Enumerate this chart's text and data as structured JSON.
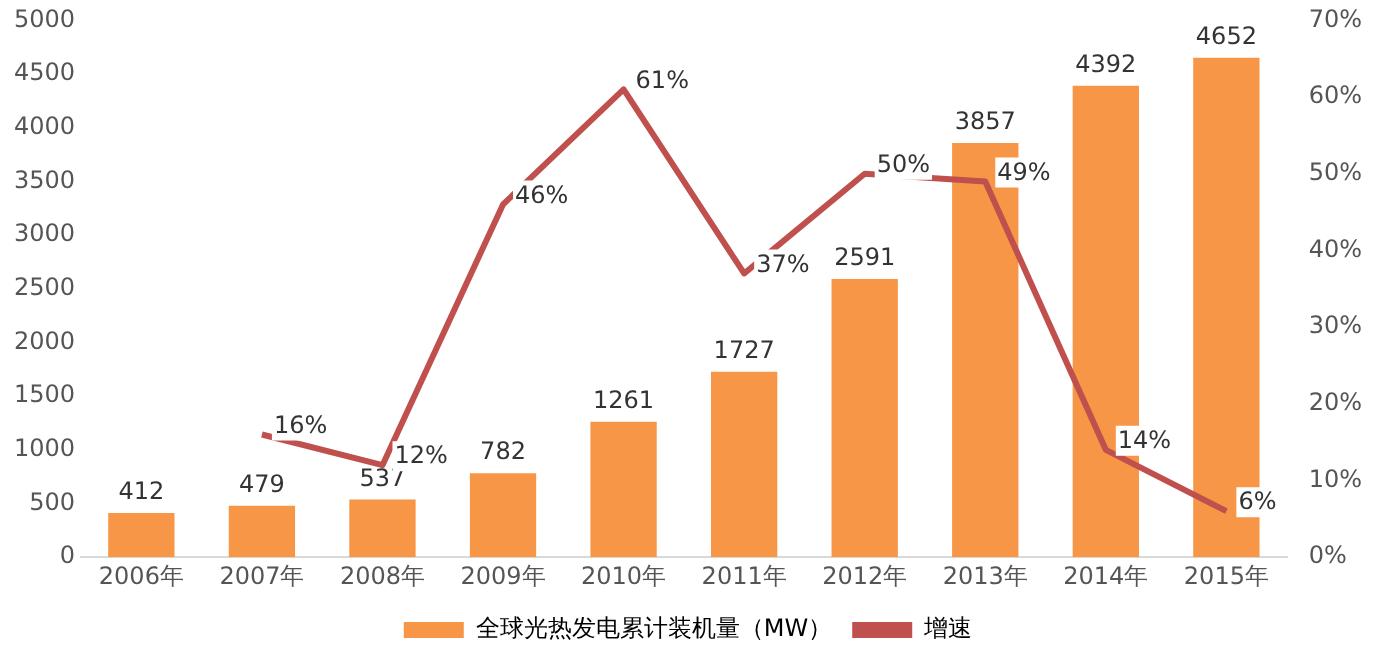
{
  "chart_data": {
    "type": "bar",
    "categories": [
      "2006年",
      "2007年",
      "2008年",
      "2009年",
      "2010年",
      "2011年",
      "2012年",
      "2013年",
      "2014年",
      "2015年"
    ],
    "series": [
      {
        "name": "全球光热发电累计装机量（MW）",
        "color": "#f79646",
        "values": [
          412,
          479,
          537,
          782,
          1261,
          1727,
          2591,
          3857,
          4392,
          4652
        ],
        "value_labels": [
          "412",
          "479",
          "537",
          "782",
          "1261",
          "1727",
          "2591",
          "3857",
          "4392",
          "4652"
        ]
      },
      {
        "name": "增速",
        "type": "line",
        "axis": "y2",
        "color": "#c0504d",
        "values": [
          null,
          16,
          12,
          46,
          61,
          37,
          50,
          49,
          14,
          6
        ],
        "value_labels": [
          null,
          "16%",
          "12%",
          "46%",
          "61%",
          "37%",
          "50%",
          "49%",
          "14%",
          "6%"
        ]
      }
    ],
    "ylim": [
      0,
      5000
    ],
    "yticks": [
      0,
      500,
      1000,
      1500,
      2000,
      2500,
      3000,
      3500,
      4000,
      4500,
      5000
    ],
    "y2lim": [
      0,
      70
    ],
    "y2ticks": [
      {
        "value": 0,
        "label": "0%"
      },
      {
        "value": 10,
        "label": "10%"
      },
      {
        "value": 20,
        "label": "20%"
      },
      {
        "value": 30,
        "label": "30%"
      },
      {
        "value": 40,
        "label": "40%"
      },
      {
        "value": 50,
        "label": "50%"
      },
      {
        "value": 60,
        "label": "60%"
      },
      {
        "value": 70,
        "label": "70%"
      }
    ],
    "legend": "bottom",
    "marker": "none",
    "grid": false
  }
}
